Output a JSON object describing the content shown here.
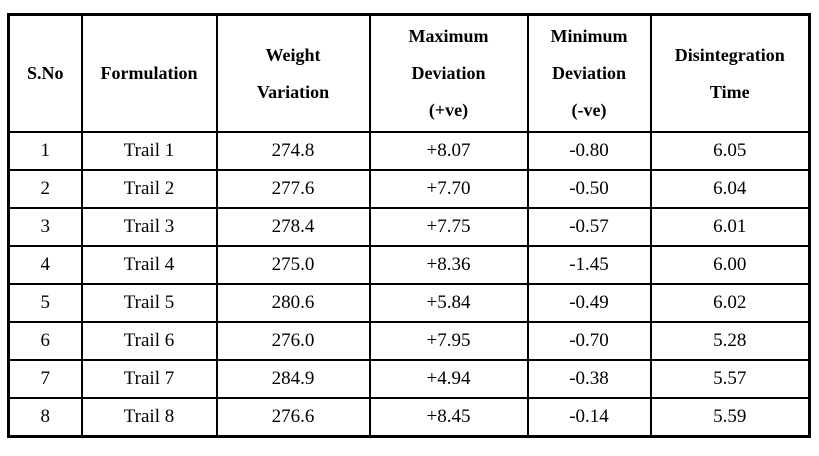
{
  "page": {
    "background_color": "#ffffff",
    "text_color": "#000000",
    "border_color": "#000000"
  },
  "table": {
    "columns": [
      "S.No",
      "Formulation",
      "Weight\nVariation",
      "Maximum\nDeviation\n(+ve)",
      "Minimum\nDeviation\n(-ve)",
      "Disintegration\nTime"
    ],
    "rows": [
      [
        "1",
        "Trail 1",
        "274.8",
        "+8.07",
        "-0.80",
        "6.05"
      ],
      [
        "2",
        "Trail 2",
        "277.6",
        "+7.70",
        "-0.50",
        "6.04"
      ],
      [
        "3",
        "Trail 3",
        "278.4",
        "+7.75",
        "-0.57",
        "6.01"
      ],
      [
        "4",
        "Trail 4",
        "275.0",
        "+8.36",
        "-1.45",
        "6.00"
      ],
      [
        "5",
        "Trail 5",
        "280.6",
        "+5.84",
        "-0.49",
        "6.02"
      ],
      [
        "6",
        "Trail 6",
        "276.0",
        "+7.95",
        "-0.70",
        "5.28"
      ],
      [
        "7",
        "Trail 7",
        "284.9",
        "+4.94",
        "-0.38",
        "5.57"
      ],
      [
        "8",
        "Trail 8",
        "276.6",
        "+8.45",
        "-0.14",
        "5.59"
      ]
    ]
  },
  "chart_data": {
    "type": "table",
    "columns": [
      "S.No",
      "Formulation",
      "Weight Variation",
      "Maximum Deviation (+ve)",
      "Minimum Deviation (-ve)",
      "Disintegration Time"
    ],
    "rows": [
      [
        1,
        "Trail 1",
        274.8,
        8.07,
        -0.8,
        6.05
      ],
      [
        2,
        "Trail 2",
        277.6,
        7.7,
        -0.5,
        6.04
      ],
      [
        3,
        "Trail 3",
        278.4,
        7.75,
        -0.57,
        6.01
      ],
      [
        4,
        "Trail 4",
        275.0,
        8.36,
        -1.45,
        6.0
      ],
      [
        5,
        "Trail 5",
        280.6,
        5.84,
        -0.49,
        6.02
      ],
      [
        6,
        "Trail 6",
        276.0,
        7.95,
        -0.7,
        5.28
      ],
      [
        7,
        "Trail 7",
        284.9,
        4.94,
        -0.38,
        5.57
      ],
      [
        8,
        "Trail 8",
        276.6,
        8.45,
        -0.14,
        5.59
      ]
    ]
  }
}
